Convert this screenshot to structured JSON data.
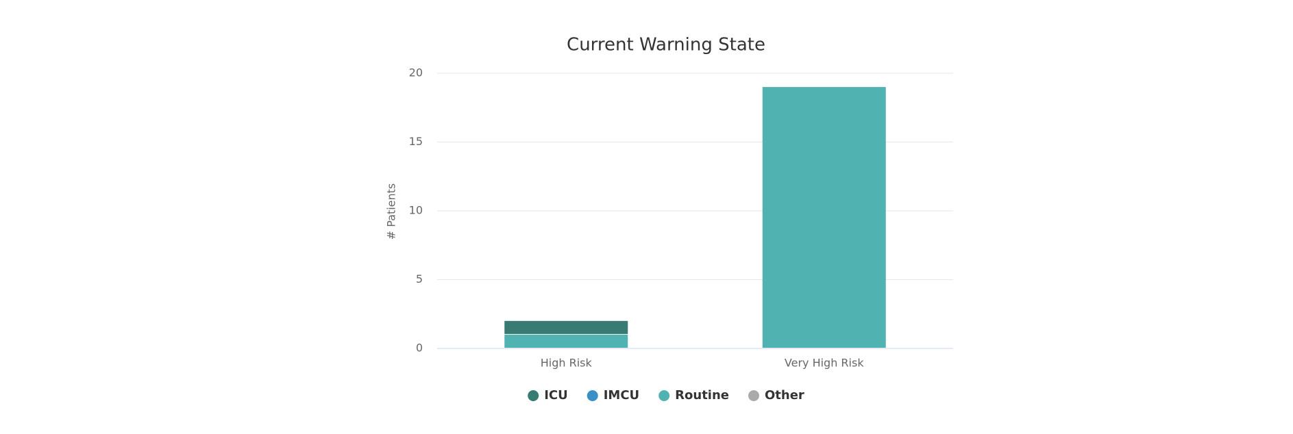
{
  "chart_data": {
    "type": "stacked_bar",
    "title": "Current Warning State",
    "y_label": "# Patients",
    "categories": [
      "High Risk",
      "Very High Risk"
    ],
    "series": [
      {
        "name": "ICU",
        "color": "#377b73",
        "values": [
          1,
          0
        ]
      },
      {
        "name": "IMCU",
        "color": "#3a8fc4",
        "values": [
          0,
          0
        ]
      },
      {
        "name": "Routine",
        "color": "#50b3b1",
        "values": [
          1,
          19
        ]
      },
      {
        "name": "Other",
        "color": "#aaaaaa",
        "values": [
          0,
          0
        ]
      }
    ],
    "ylim": [
      0,
      20
    ],
    "yticks": [
      0,
      5,
      10,
      15,
      20
    ],
    "grid": true,
    "legend": "bottom"
  }
}
